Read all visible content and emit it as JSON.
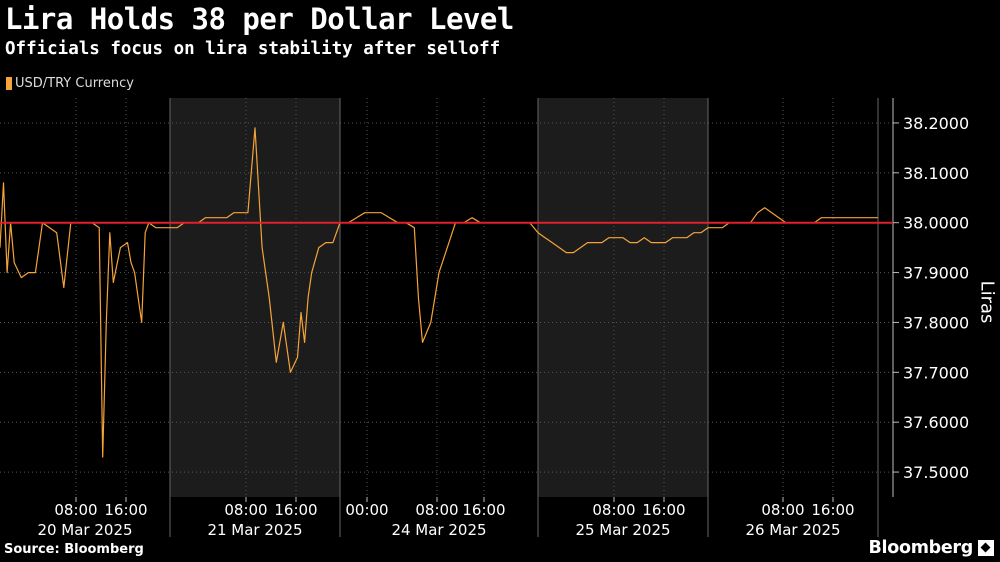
{
  "header": {
    "title": "Lira Holds 38 per Dollar Level",
    "subtitle": "Officials focus on lira stability after selloff"
  },
  "legend": {
    "label": "USD/TRY Currency",
    "color": "#f5a33a"
  },
  "footer": {
    "source": "Source: Bloomberg",
    "brand": "Bloomberg"
  },
  "colors": {
    "line": "#f5a33a",
    "reference_line": "#e0202a",
    "shade": "#1c1c1c",
    "grid": "#555555"
  },
  "chart_data": {
    "type": "line",
    "title": "Lira Holds 38 per Dollar Level",
    "subtitle": "Officials focus on lira stability after selloff",
    "ylabel": "Liras",
    "xlabel": "",
    "ylim": [
      37.45,
      38.25
    ],
    "y_ticks": [
      "38.2000",
      "38.1000",
      "38.0000",
      "37.9000",
      "37.8000",
      "37.7000",
      "37.6000",
      "37.5000"
    ],
    "y_tick_values": [
      38.2,
      38.1,
      38.0,
      37.9,
      37.8,
      37.7,
      37.6,
      37.5
    ],
    "x_time_labels": [
      "08:00",
      "16:00",
      "08:00",
      "16:00",
      "00:00",
      "08:00",
      "16:00",
      "08:00",
      "16:00",
      "08:00",
      "16:00"
    ],
    "x_day_labels": [
      "20 Mar 2025",
      "21 Mar 2025",
      "24 Mar 2025",
      "25 Mar 2025",
      "26 Mar 2025"
    ],
    "shaded_days": [
      "21 Mar 2025",
      "25 Mar 2025"
    ],
    "reference_line": 38.0,
    "legend_position": "top-left",
    "grid": true,
    "series": [
      {
        "name": "USD/TRY Currency",
        "x_hours": [
          0,
          0.5,
          1,
          1.5,
          2,
          3,
          4,
          5,
          6,
          7,
          8,
          9,
          10,
          11,
          12,
          13,
          14,
          14.5,
          15,
          15.5,
          16,
          17,
          18,
          18.5,
          19,
          19.5,
          20,
          20.5,
          21,
          22,
          23,
          24,
          25,
          26,
          27,
          28,
          29,
          30,
          31,
          32,
          33,
          34,
          35,
          36,
          37,
          38,
          39,
          40,
          41,
          42,
          42.5,
          43,
          43.5,
          44,
          45,
          46,
          47,
          48,
          49,
          50,
          51,
          52,
          53,
          54,
          55,
          56,
          57,
          57.5,
          58,
          59,
          60,
          61,
          62,
          63,
          64,
          65,
          66,
          67,
          68,
          69,
          70,
          71,
          72,
          73,
          74,
          75,
          76,
          77,
          78,
          79,
          80,
          81,
          82,
          83,
          84,
          85,
          86,
          87,
          88,
          89,
          90,
          91,
          92,
          93,
          94,
          95,
          96,
          97,
          98,
          99,
          100,
          101,
          102,
          103,
          104,
          105,
          106,
          107,
          108,
          109,
          110,
          111,
          112,
          113,
          114,
          115,
          116,
          117,
          118,
          119,
          120
        ],
        "values": [
          37.95,
          38.08,
          37.9,
          38.0,
          37.92,
          37.89,
          37.9,
          37.9,
          38.0,
          37.99,
          37.98,
          37.87,
          38.0,
          38.0,
          38.0,
          38.0,
          37.99,
          37.53,
          37.8,
          37.98,
          37.88,
          37.95,
          37.96,
          37.92,
          37.9,
          37.85,
          37.8,
          37.98,
          38.0,
          37.99,
          37.99,
          37.99,
          37.99,
          38.0,
          38.0,
          38.0,
          38.01,
          38.01,
          38.01,
          38.01,
          38.02,
          38.02,
          38.02,
          38.19,
          37.95,
          37.85,
          37.72,
          37.8,
          37.7,
          37.73,
          37.82,
          37.76,
          37.85,
          37.9,
          37.95,
          37.96,
          37.96,
          38.0,
          38.0,
          38.01,
          38.02,
          38.02,
          38.02,
          38.01,
          38.0,
          38.0,
          37.99,
          37.85,
          37.76,
          37.8,
          37.9,
          37.95,
          38.0,
          38.0,
          38.01,
          38.0,
          38.0,
          38.0,
          38.0,
          38.0,
          38.0,
          38.0,
          37.98,
          37.97,
          37.96,
          37.95,
          37.94,
          37.94,
          37.95,
          37.96,
          37.96,
          37.96,
          37.97,
          37.97,
          37.97,
          37.96,
          37.96,
          37.97,
          37.96,
          37.96,
          37.96,
          37.97,
          37.97,
          37.97,
          37.98,
          37.98,
          37.99,
          37.99,
          37.99,
          38.0,
          38.0,
          38.0,
          38.0,
          38.02,
          38.03,
          38.02,
          38.01,
          38.0,
          38.0,
          38.0,
          38.0,
          38.0,
          38.01,
          38.01,
          38.01,
          38.01,
          38.01,
          38.01,
          38.01,
          38.01,
          38.01
        ]
      }
    ]
  }
}
